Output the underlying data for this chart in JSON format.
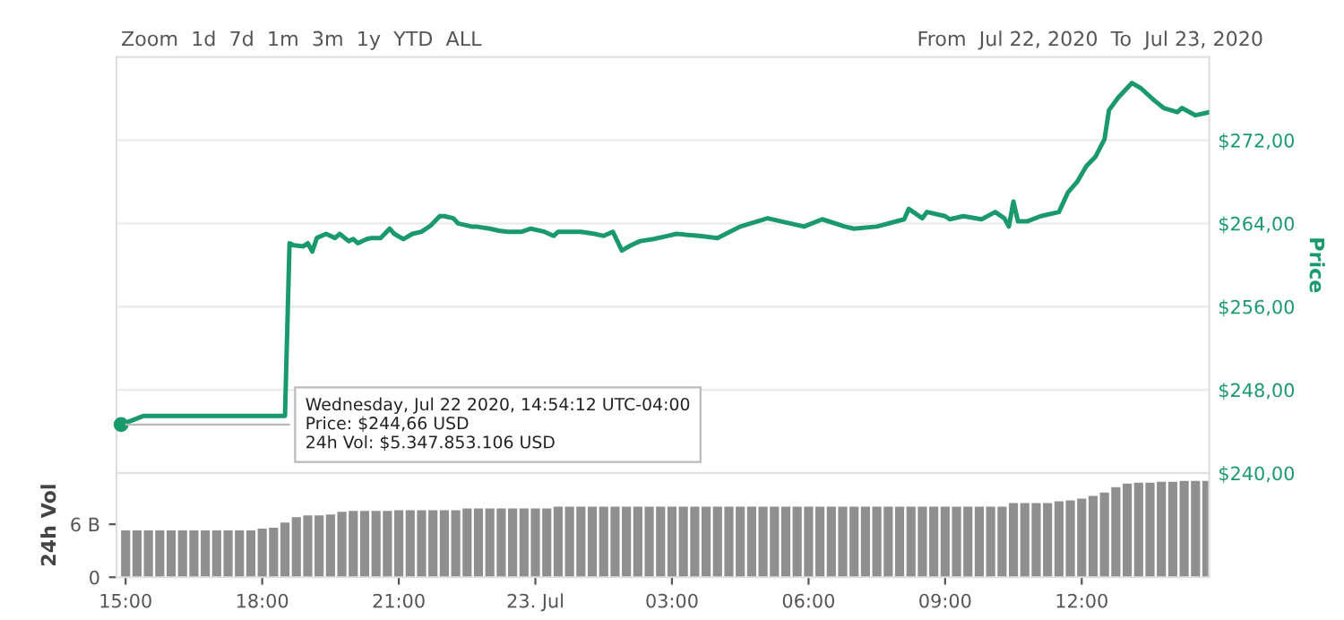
{
  "chart_data": [
    {
      "type": "line",
      "ylabel": "Price",
      "color": "#1a9a6c",
      "annotations": [
        "Zoom  1d  7d  1m  3m  1y  YTD  ALL",
        "From  Jul 22, 2020  To  Jul 23, 2020",
        {
          "text": "Wednesday, Jul 22 2020, 14:54:12 UTC-04:00\nPrice: $244,66 USD\n24h Vol: $5.347.853.106 USD",
          "x": "2020-07-22T14:54",
          "y": 244.66
        }
      ],
      "x": [
        "2020-07-22T14:54",
        "2020-07-22T15:24",
        "2020-07-22T18:30",
        "2020-07-22T18:36",
        "2020-07-22T18:42",
        "2020-07-22T18:54",
        "2020-07-22T19:00",
        "2020-07-22T19:06",
        "2020-07-22T19:12",
        "2020-07-22T19:24",
        "2020-07-22T19:36",
        "2020-07-22T19:42",
        "2020-07-22T19:54",
        "2020-07-22T20:00",
        "2020-07-22T20:06",
        "2020-07-22T20:18",
        "2020-07-22T20:24",
        "2020-07-22T20:36",
        "2020-07-22T20:48",
        "2020-07-22T20:54",
        "2020-07-22T21:06",
        "2020-07-22T21:18",
        "2020-07-22T21:30",
        "2020-07-22T21:42",
        "2020-07-22T21:54",
        "2020-07-22T22:00",
        "2020-07-22T22:12",
        "2020-07-22T22:18",
        "2020-07-22T22:36",
        "2020-07-22T22:42",
        "2020-07-22T23:00",
        "2020-07-22T23:12",
        "2020-07-22T23:24",
        "2020-07-22T23:42",
        "2020-07-22T23:54",
        "2020-07-23T00:12",
        "2020-07-23T00:24",
        "2020-07-23T00:30",
        "2020-07-23T00:48",
        "2020-07-23T01:00",
        "2020-07-23T01:18",
        "2020-07-23T01:30",
        "2020-07-23T01:42",
        "2020-07-23T01:54",
        "2020-07-23T02:06",
        "2020-07-23T02:18",
        "2020-07-23T02:36",
        "2020-07-23T02:54",
        "2020-07-23T03:06",
        "2020-07-23T03:36",
        "2020-07-23T04:00",
        "2020-07-23T04:30",
        "2020-07-23T05:06",
        "2020-07-23T05:54",
        "2020-07-23T06:18",
        "2020-07-23T06:48",
        "2020-07-23T07:00",
        "2020-07-23T07:30",
        "2020-07-23T08:06",
        "2020-07-23T08:12",
        "2020-07-23T08:30",
        "2020-07-23T08:36",
        "2020-07-23T09:00",
        "2020-07-23T09:06",
        "2020-07-23T09:24",
        "2020-07-23T09:48",
        "2020-07-23T10:06",
        "2020-07-23T10:18",
        "2020-07-23T10:24",
        "2020-07-23T10:30",
        "2020-07-23T10:36",
        "2020-07-23T10:48",
        "2020-07-23T11:06",
        "2020-07-23T11:30",
        "2020-07-23T11:42",
        "2020-07-23T11:54",
        "2020-07-23T12:06",
        "2020-07-23T12:18",
        "2020-07-23T12:30",
        "2020-07-23T12:36",
        "2020-07-23T12:48",
        "2020-07-23T13:06",
        "2020-07-23T13:18",
        "2020-07-23T13:36",
        "2020-07-23T13:48",
        "2020-07-23T14:06",
        "2020-07-23T14:12",
        "2020-07-23T14:30",
        "2020-07-23T14:48"
      ],
      "values": [
        244.66,
        245.5,
        245.5,
        262.1,
        261.9,
        261.8,
        262.1,
        261.3,
        262.6,
        263.0,
        262.6,
        263.0,
        262.3,
        262.5,
        262.1,
        262.5,
        262.6,
        262.6,
        263.5,
        263.0,
        262.5,
        263.0,
        263.2,
        263.8,
        264.7,
        264.7,
        264.5,
        264.0,
        263.7,
        263.7,
        263.5,
        263.3,
        263.2,
        263.2,
        263.5,
        263.2,
        262.8,
        263.2,
        263.2,
        263.2,
        263.0,
        262.8,
        263.2,
        261.4,
        261.9,
        262.3,
        262.5,
        262.8,
        263.0,
        262.8,
        262.6,
        263.7,
        264.5,
        263.7,
        264.4,
        263.7,
        263.5,
        263.7,
        264.4,
        265.4,
        264.5,
        265.1,
        264.7,
        264.4,
        264.7,
        264.4,
        265.1,
        264.5,
        263.7,
        266.1,
        264.2,
        264.2,
        264.7,
        265.1,
        267.0,
        268.0,
        269.5,
        270.4,
        272.1,
        274.9,
        276.1,
        277.5,
        277.0,
        275.8,
        275.1,
        274.7,
        275.1,
        274.4,
        274.7
      ],
      "xlim": [
        "2020-07-22T14:48",
        "2020-07-23T14:48"
      ],
      "ylim": [
        240,
        280
      ],
      "yticks": [
        {
          "value": 240,
          "label": "$240,00"
        },
        {
          "value": 248,
          "label": "$248,00"
        },
        {
          "value": 256,
          "label": "$256,00"
        },
        {
          "value": 264,
          "label": "$264,00"
        },
        {
          "value": 272,
          "label": "$272,00"
        }
      ],
      "tick_labels": "y",
      "grid": "y",
      "marker": "none",
      "line_style": "solid"
    },
    {
      "type": "bar",
      "ylabel": "24h Vol",
      "color": "#8f8f8f",
      "x": [
        "2020-07-22T15:00",
        "2020-07-22T15:15",
        "2020-07-22T15:30",
        "2020-07-22T15:45",
        "2020-07-22T16:00",
        "2020-07-22T16:15",
        "2020-07-22T16:30",
        "2020-07-22T16:45",
        "2020-07-22T17:00",
        "2020-07-22T17:15",
        "2020-07-22T17:30",
        "2020-07-22T17:45",
        "2020-07-22T18:00",
        "2020-07-22T18:15",
        "2020-07-22T18:30",
        "2020-07-22T18:45",
        "2020-07-22T19:00",
        "2020-07-22T19:15",
        "2020-07-22T19:30",
        "2020-07-22T19:45",
        "2020-07-22T20:00",
        "2020-07-22T20:15",
        "2020-07-22T20:30",
        "2020-07-22T20:45",
        "2020-07-22T21:00",
        "2020-07-22T21:15",
        "2020-07-22T21:30",
        "2020-07-22T21:45",
        "2020-07-22T22:00",
        "2020-07-22T22:15",
        "2020-07-22T22:30",
        "2020-07-22T22:45",
        "2020-07-22T23:00",
        "2020-07-22T23:15",
        "2020-07-22T23:30",
        "2020-07-22T23:45",
        "2020-07-23T00:00",
        "2020-07-23T00:15",
        "2020-07-23T00:30",
        "2020-07-23T00:45",
        "2020-07-23T01:00",
        "2020-07-23T01:15",
        "2020-07-23T01:30",
        "2020-07-23T01:45",
        "2020-07-23T02:00",
        "2020-07-23T02:15",
        "2020-07-23T02:30",
        "2020-07-23T02:45",
        "2020-07-23T03:00",
        "2020-07-23T03:15",
        "2020-07-23T03:30",
        "2020-07-23T03:45",
        "2020-07-23T04:00",
        "2020-07-23T04:15",
        "2020-07-23T04:30",
        "2020-07-23T04:45",
        "2020-07-23T05:00",
        "2020-07-23T05:15",
        "2020-07-23T05:30",
        "2020-07-23T05:45",
        "2020-07-23T06:00",
        "2020-07-23T06:15",
        "2020-07-23T06:30",
        "2020-07-23T06:45",
        "2020-07-23T07:00",
        "2020-07-23T07:15",
        "2020-07-23T07:30",
        "2020-07-23T07:45",
        "2020-07-23T08:00",
        "2020-07-23T08:15",
        "2020-07-23T08:30",
        "2020-07-23T08:45",
        "2020-07-23T09:00",
        "2020-07-23T09:15",
        "2020-07-23T09:30",
        "2020-07-23T09:45",
        "2020-07-23T10:00",
        "2020-07-23T10:15",
        "2020-07-23T10:30",
        "2020-07-23T10:45",
        "2020-07-23T11:00",
        "2020-07-23T11:15",
        "2020-07-23T11:30",
        "2020-07-23T11:45",
        "2020-07-23T12:00",
        "2020-07-23T12:15",
        "2020-07-23T12:30",
        "2020-07-23T12:45",
        "2020-07-23T13:00",
        "2020-07-23T13:15",
        "2020-07-23T13:30",
        "2020-07-23T13:45",
        "2020-07-23T14:00",
        "2020-07-23T14:15",
        "2020-07-23T14:30",
        "2020-07-23T14:45"
      ],
      "values": [
        5.3,
        5.3,
        5.3,
        5.3,
        5.3,
        5.3,
        5.3,
        5.3,
        5.3,
        5.3,
        5.3,
        5.3,
        5.5,
        5.6,
        6.2,
        6.8,
        7.0,
        7.0,
        7.1,
        7.4,
        7.5,
        7.5,
        7.5,
        7.5,
        7.6,
        7.6,
        7.6,
        7.6,
        7.6,
        7.6,
        7.8,
        7.8,
        7.8,
        7.8,
        7.8,
        7.8,
        7.8,
        7.8,
        8.0,
        8.0,
        8.0,
        8.0,
        8.0,
        8.0,
        8.0,
        8.0,
        8.0,
        8.0,
        8.0,
        8.0,
        8.0,
        8.0,
        8.0,
        8.0,
        8.0,
        8.0,
        8.0,
        8.0,
        8.0,
        8.0,
        8.0,
        8.0,
        8.0,
        8.0,
        8.0,
        8.0,
        8.0,
        8.0,
        8.0,
        8.0,
        8.0,
        8.0,
        8.0,
        8.0,
        8.0,
        8.0,
        8.0,
        8.0,
        8.4,
        8.4,
        8.4,
        8.4,
        8.6,
        8.7,
        8.9,
        9.2,
        9.6,
        10.2,
        10.6,
        10.7,
        10.7,
        10.8,
        10.8,
        10.9,
        10.9,
        10.9
      ],
      "xlim": [
        "2020-07-22T14:48",
        "2020-07-23T14:48"
      ],
      "ylim": [
        0,
        11.8
      ],
      "xticks": [
        {
          "value": "2020-07-22T15:00",
          "label": "15:00"
        },
        {
          "value": "2020-07-22T18:00",
          "label": "18:00"
        },
        {
          "value": "2020-07-22T21:00",
          "label": "21:00"
        },
        {
          "value": "2020-07-23T00:00",
          "label": "23. Jul"
        },
        {
          "value": "2020-07-23T03:00",
          "label": "03:00"
        },
        {
          "value": "2020-07-23T06:00",
          "label": "06:00"
        },
        {
          "value": "2020-07-23T09:00",
          "label": "09:00"
        },
        {
          "value": "2020-07-23T12:00",
          "label": "12:00"
        }
      ],
      "yticks": [
        0,
        {
          "value": 6,
          "label": "6 B"
        }
      ]
    }
  ]
}
